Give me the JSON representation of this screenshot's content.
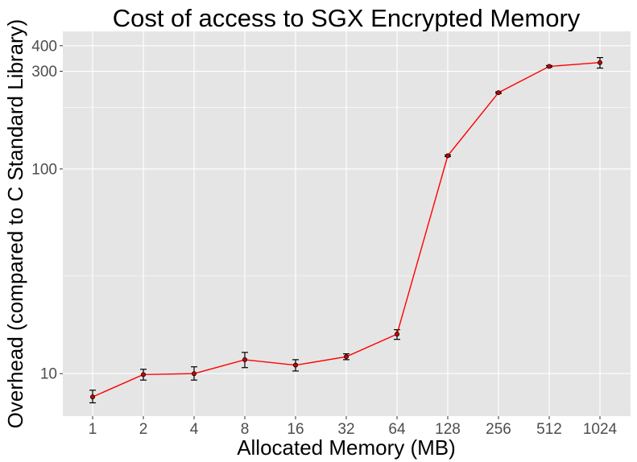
{
  "chart_data": {
    "type": "line",
    "title": "Cost of access to SGX Encrypted Memory",
    "xlabel": "Allocated Memory (MB)",
    "ylabel": "Overhead (compared to C Standard Library)",
    "y_scale": "log10",
    "ylim": [
      6.2,
      470
    ],
    "categories": [
      "1",
      "2",
      "4",
      "8",
      "16",
      "32",
      "64",
      "128",
      "256",
      "512",
      "1024"
    ],
    "y_ticks": [
      10,
      100,
      300,
      400
    ],
    "y_minor_gridlines": [
      30,
      200
    ],
    "series": [
      {
        "values": [
          7.7,
          9.9,
          10.0,
          11.7,
          11.0,
          12.1,
          15.6,
          116.0,
          236.0,
          317.0,
          331.0
        ],
        "error_low": [
          7.2,
          9.3,
          9.3,
          10.7,
          10.3,
          11.7,
          14.7,
          115.0,
          234.0,
          314.0,
          311.0
        ],
        "error_high": [
          8.3,
          10.5,
          10.8,
          12.7,
          11.7,
          12.5,
          16.4,
          117.0,
          238.0,
          320.0,
          350.0
        ]
      }
    ],
    "colors": {
      "panel": "#e5e5e5",
      "grid": "#ffffff",
      "line": "#ff0000",
      "point": "#cc0000",
      "errorbar": "#000000"
    },
    "grid": true,
    "legend": "none"
  }
}
